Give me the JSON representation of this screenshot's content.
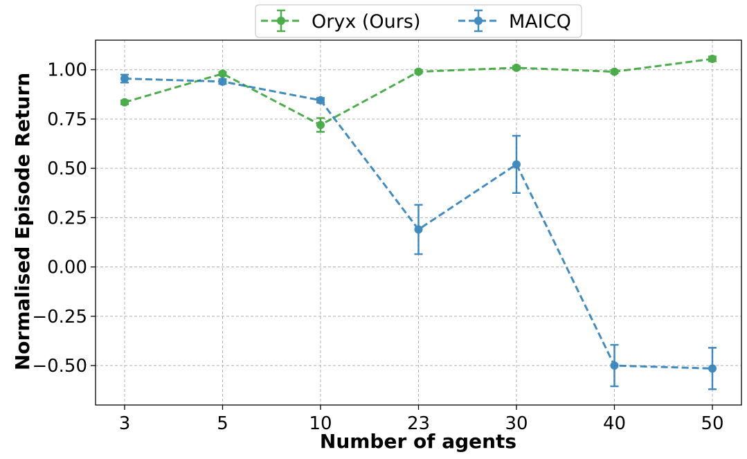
{
  "chart_data": {
    "type": "line",
    "title": "",
    "xlabel": "Number of agents",
    "ylabel": "Normalised Episode Return",
    "categories": [
      "3",
      "5",
      "10",
      "23",
      "30",
      "40",
      "50"
    ],
    "ylim": [
      -0.7,
      1.15
    ],
    "yticks": [
      -0.5,
      -0.25,
      0.0,
      0.25,
      0.5,
      0.75,
      1.0
    ],
    "ytick_labels": [
      "−0.50",
      "−0.25",
      "0.00",
      "0.25",
      "0.50",
      "0.75",
      "1.00"
    ],
    "grid": true,
    "legend_position": "top-center",
    "series": [
      {
        "name": "Oryx (Ours)",
        "color": "#2ca02c",
        "values": [
          0.835,
          0.98,
          0.72,
          0.99,
          1.01,
          0.99,
          1.055
        ],
        "errors": [
          0.01,
          0.008,
          0.035,
          0.008,
          0.008,
          0.008,
          0.012
        ]
      },
      {
        "name": "MAICQ",
        "color": "#1f77b4",
        "values": [
          0.955,
          0.94,
          0.845,
          0.19,
          0.52,
          -0.5,
          -0.515
        ],
        "errors": [
          0.02,
          0.012,
          0.012,
          0.125,
          0.145,
          0.105,
          0.105
        ]
      }
    ]
  }
}
